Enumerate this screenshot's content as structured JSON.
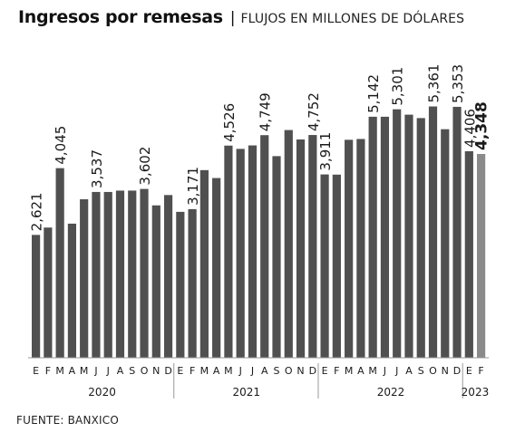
{
  "header": {
    "title": "Ingresos por remesas",
    "separator": "|",
    "subtitle": "FLUJOS EN MILLONES DE DÓLARES"
  },
  "source": "FUENTE: BANXICO",
  "colors": {
    "bar": "#505050",
    "highlight_bar": "#8a8a8a",
    "text": "#1a1a1a",
    "axis": "#9a9a9a"
  },
  "chart_data": {
    "type": "bar",
    "title": "Ingresos por remesas",
    "subtitle": "FLUJOS EN MILLONES DE DÓLARES",
    "ylim": [
      0,
      5700
    ],
    "grid": false,
    "legend": "none",
    "years": [
      {
        "label": "2020",
        "months": 12
      },
      {
        "label": "2021",
        "months": 12
      },
      {
        "label": "2022",
        "months": 12
      },
      {
        "label": "2023",
        "months": 2
      }
    ],
    "categories": [
      "E",
      "F",
      "M",
      "A",
      "M",
      "J",
      "J",
      "A",
      "S",
      "O",
      "N",
      "D",
      "E",
      "F",
      "M",
      "A",
      "M",
      "J",
      "J",
      "A",
      "S",
      "O",
      "N",
      "D",
      "E",
      "F",
      "M",
      "A",
      "M",
      "J",
      "J",
      "A",
      "S",
      "O",
      "N",
      "D",
      "E",
      "F"
    ],
    "values": [
      2621,
      2778,
      4045,
      2861,
      3381,
      3537,
      3537,
      3566,
      3566,
      3602,
      3251,
      3471,
      3113,
      3171,
      4003,
      3834,
      4526,
      4456,
      4530,
      4749,
      4301,
      4858,
      4657,
      4752,
      3911,
      3907,
      4650,
      4667,
      5142,
      5142,
      5301,
      5186,
      5113,
      5361,
      4876,
      5353,
      4406,
      4348
    ],
    "data_labels": [
      {
        "index": 0,
        "text": "2,621"
      },
      {
        "index": 2,
        "text": "4,045"
      },
      {
        "index": 5,
        "text": "3,537"
      },
      {
        "index": 9,
        "text": "3,602"
      },
      {
        "index": 13,
        "text": "3,171"
      },
      {
        "index": 16,
        "text": "4,526"
      },
      {
        "index": 19,
        "text": "4,749"
      },
      {
        "index": 23,
        "text": "4,752"
      },
      {
        "index": 24,
        "text": "3,911"
      },
      {
        "index": 28,
        "text": "5,142"
      },
      {
        "index": 30,
        "text": "5,301"
      },
      {
        "index": 33,
        "text": "5,361"
      },
      {
        "index": 35,
        "text": "5,353"
      },
      {
        "index": 36,
        "text": "4,406"
      },
      {
        "index": 37,
        "text": "4,348",
        "bold": true
      }
    ],
    "highlight_index": 37
  }
}
